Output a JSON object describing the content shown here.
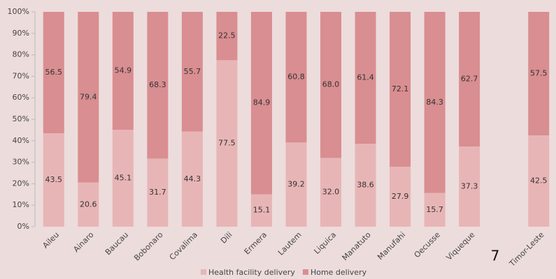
{
  "chart_data": {
    "type": "stacked_bar_100",
    "categories": [
      "Aileu",
      "Ainaro",
      "Baucau",
      "Bobonaro",
      "Covalima",
      "Dili",
      "Ermera",
      "Lautem",
      "Liquica",
      "Manatuto",
      "Manufahi",
      "Oecusse",
      "Viqueque",
      null,
      "Timor-Leste"
    ],
    "series": [
      {
        "name": "Health facility delivery",
        "color": "#e8b5b6",
        "values": [
          43.5,
          20.6,
          45.1,
          31.7,
          44.3,
          77.5,
          15.1,
          39.2,
          32.0,
          38.6,
          27.9,
          15.7,
          37.3,
          null,
          42.5
        ],
        "value_labels": [
          "43.5",
          "20.6",
          "45.1",
          "31.7",
          "44.3",
          "77.5",
          "15.1",
          "39.2",
          "32.0",
          "38.6",
          "27.9",
          "15.7",
          "37.3",
          null,
          "42.5"
        ]
      },
      {
        "name": "Home delivery",
        "color": "#d98e91",
        "values": [
          56.5,
          79.4,
          54.9,
          68.3,
          55.7,
          22.5,
          84.9,
          60.8,
          68.0,
          61.4,
          72.1,
          84.3,
          62.7,
          null,
          57.5
        ],
        "value_labels": [
          "56.5",
          "79.4",
          "54.9",
          "68.3",
          "55.7",
          "22.5",
          "84.9",
          "60.8",
          "68.0",
          "61.4",
          "72.1",
          "84.3",
          "62.7",
          null,
          "57.5"
        ]
      }
    ],
    "ylim": [
      0,
      100
    ],
    "yticks": [
      {
        "value": 0,
        "label": "0%"
      },
      {
        "value": 10,
        "label": "10%"
      },
      {
        "value": 20,
        "label": "20%"
      },
      {
        "value": 30,
        "label": "30%"
      },
      {
        "value": 40,
        "label": "40%"
      },
      {
        "value": 50,
        "label": "50%"
      },
      {
        "value": 60,
        "label": "60%"
      },
      {
        "value": 70,
        "label": "70%"
      },
      {
        "value": 80,
        "label": "80%"
      },
      {
        "value": 90,
        "label": "90%"
      },
      {
        "value": 100,
        "label": "100%"
      }
    ],
    "grid": false,
    "legend": "bottom",
    "annotations": [
      "7"
    ]
  }
}
